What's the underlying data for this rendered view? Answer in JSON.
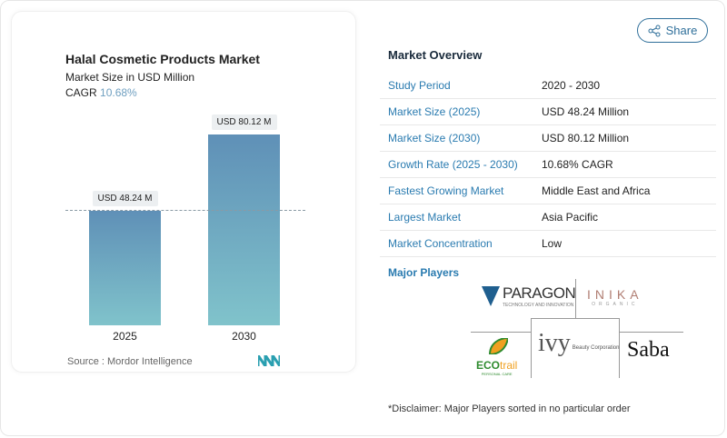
{
  "chart_data": {
    "type": "bar",
    "title": "Halal Cosmetic Products Market",
    "subtitle": "Market Size in USD Million",
    "cagr_label": "CAGR",
    "cagr_value": "10.68%",
    "categories": [
      "2025",
      "2030"
    ],
    "values": [
      48.24,
      80.12
    ],
    "data_labels": [
      "USD 48.24 M",
      "USD 80.12 M"
    ],
    "ylim": [
      0,
      80.12
    ],
    "colors": {
      "bar_top": "#5f90b7",
      "bar_bottom": "#80c3cb"
    },
    "source": "Source :  Mordor Intelligence"
  },
  "share_label": "Share",
  "overview": {
    "title": "Market Overview",
    "rows": [
      {
        "label": "Study Period",
        "value": "2020 - 2030"
      },
      {
        "label": "Market Size (2025)",
        "value": "USD 48.24 Million"
      },
      {
        "label": "Market Size (2030)",
        "value": "USD 80.12 Million"
      },
      {
        "label": "Growth Rate (2025 - 2030)",
        "value": "10.68% CAGR"
      },
      {
        "label": "Fastest Growing Market",
        "value": "Middle East and Africa"
      },
      {
        "label": "Largest Market",
        "value": "Asia Pacific"
      },
      {
        "label": "Market Concentration",
        "value": "Low"
      }
    ]
  },
  "players": {
    "title": "Major Players",
    "logos": [
      "PARAGON TECHNOLOGY AND INNOVATION",
      "INIKA ORGANIC",
      "ECOtrail PERSONAL CARE",
      "ivy Beauty Corporation",
      "Saba"
    ]
  },
  "disclaimer": "*Disclaimer: Major Players sorted in no particular order"
}
